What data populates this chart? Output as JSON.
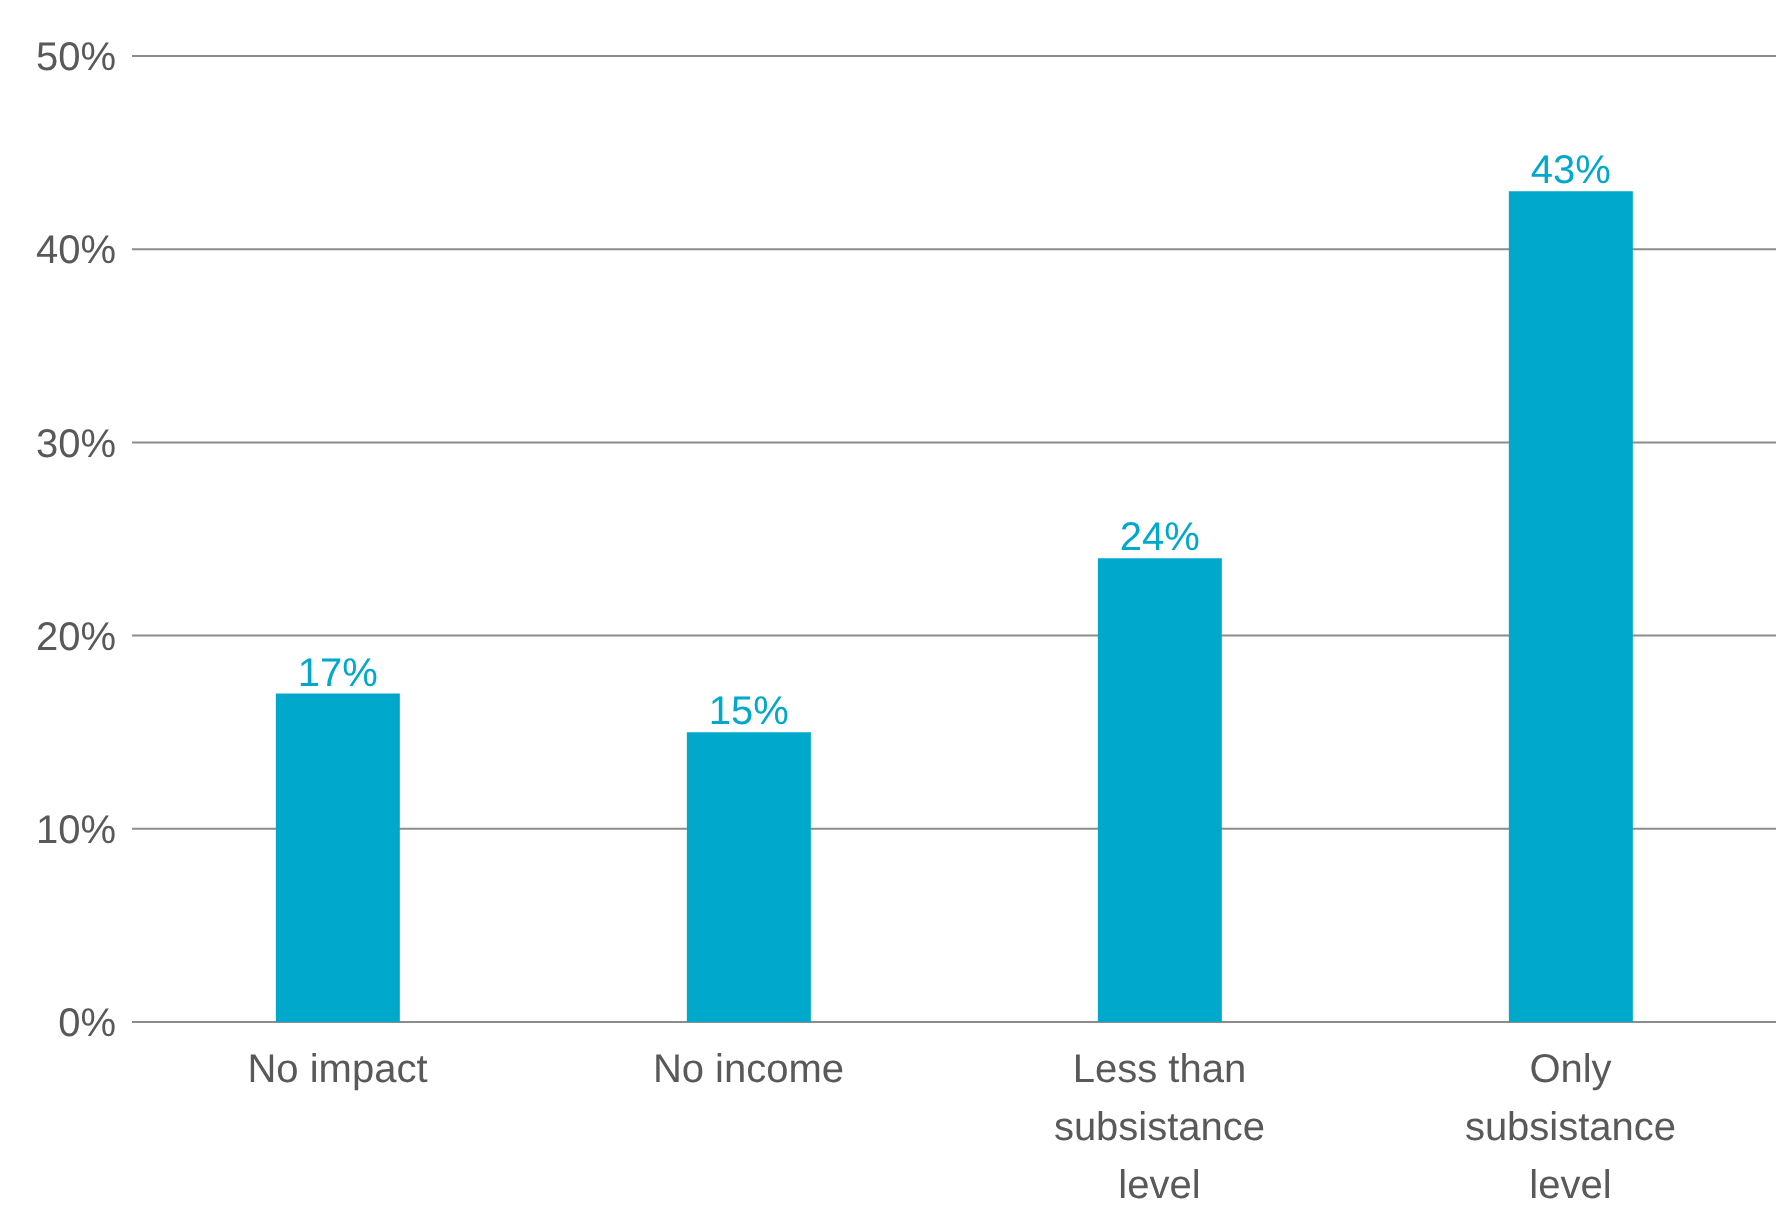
{
  "chart_data": {
    "type": "bar",
    "categories": [
      "No impact",
      "No income",
      "Less than subsistance level",
      "Only subsistance level"
    ],
    "values": [
      17,
      15,
      24,
      43
    ],
    "color": "#00a9cc",
    "value_labels": [
      "17%",
      "15%",
      "24%",
      "43%"
    ],
    "ylim": [
      0,
      50
    ],
    "yticks": [
      {
        "value": 0,
        "label": "0%"
      },
      {
        "value": 10,
        "label": "10%"
      },
      {
        "value": 20,
        "label": "20%"
      },
      {
        "value": 30,
        "label": "30%"
      },
      {
        "value": 40,
        "label": "40%"
      },
      {
        "value": 50,
        "label": "50%"
      }
    ],
    "grid": "y",
    "legend": false
  }
}
